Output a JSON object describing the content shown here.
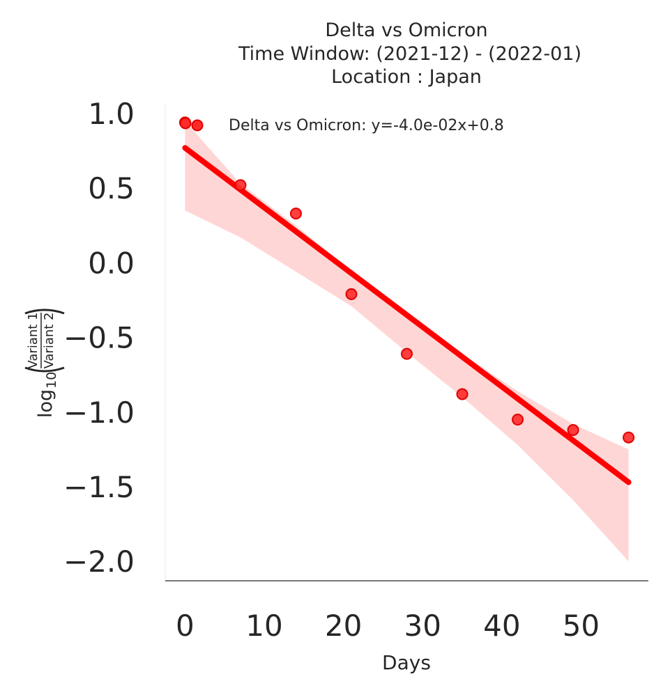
{
  "chart_data": {
    "type": "scatter",
    "title_lines": [
      "Delta vs Omicron",
      "Time Window: (2021-12) - (2022-01)",
      "Location : Japan"
    ],
    "xlabel": "Days",
    "ylabel": {
      "prefix": "log",
      "subscript": "10",
      "numerator": "Variant 1",
      "denominator": "Variant 2"
    },
    "xlim": [
      -2.5,
      58.5
    ],
    "ylim": [
      -2.13,
      1.07
    ],
    "xticks": [
      0,
      10,
      20,
      30,
      40,
      50
    ],
    "xtick_labels": [
      "0",
      "10",
      "20",
      "30",
      "40",
      "50"
    ],
    "yticks": [
      1.0,
      0.5,
      0.0,
      -0.5,
      -1.0,
      -1.5,
      -2.0
    ],
    "ytick_labels": [
      "1.0",
      "0.5",
      "0.0",
      "−0.5",
      "−1.0",
      "−1.5",
      "−2.0"
    ],
    "series": [
      {
        "name": "Delta vs Omicron",
        "legend_label": "Delta vs Omicron: y=-4.0e-02x+0.8",
        "color": "#ff0000",
        "band_color": "#ffd6d6",
        "points": [
          {
            "x": 0,
            "y": 0.94
          },
          {
            "x": 7,
            "y": 0.52
          },
          {
            "x": 14,
            "y": 0.33
          },
          {
            "x": 21,
            "y": -0.21
          },
          {
            "x": 28,
            "y": -0.61
          },
          {
            "x": 35,
            "y": -0.88
          },
          {
            "x": 42,
            "y": -1.05
          },
          {
            "x": 49,
            "y": -1.12
          },
          {
            "x": 56,
            "y": -1.17
          }
        ],
        "fit_line": [
          {
            "x": 0,
            "y": 0.77
          },
          {
            "x": 56,
            "y": -1.47
          }
        ],
        "confidence_band": {
          "x": [
            0,
            7,
            14,
            21,
            28,
            35,
            42,
            49,
            56
          ],
          "upper": [
            0.95,
            0.53,
            0.25,
            -0.06,
            -0.33,
            -0.61,
            -0.86,
            -1.08,
            -1.25
          ],
          "lower": [
            0.35,
            0.17,
            -0.06,
            -0.29,
            -0.6,
            -0.9,
            -1.22,
            -1.59,
            -2.0
          ]
        }
      }
    ]
  }
}
